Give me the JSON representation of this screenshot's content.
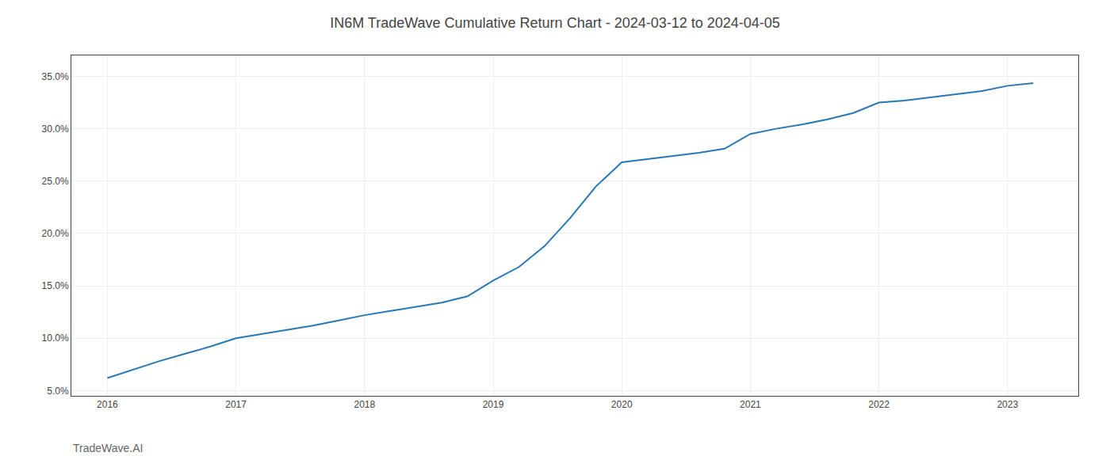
{
  "chart_data": {
    "type": "line",
    "title": "IN6M TradeWave Cumulative Return Chart - 2024-03-12 to 2024-04-05",
    "annotations": [
      "TradeWave.AI"
    ],
    "x": [
      2016.0,
      2016.2,
      2016.4,
      2016.6,
      2016.8,
      2017.0,
      2017.2,
      2017.4,
      2017.6,
      2017.8,
      2018.0,
      2018.2,
      2018.4,
      2018.6,
      2018.8,
      2019.0,
      2019.2,
      2019.4,
      2019.6,
      2019.8,
      2020.0,
      2020.2,
      2020.4,
      2020.6,
      2020.8,
      2021.0,
      2021.2,
      2021.4,
      2021.6,
      2021.8,
      2022.0,
      2022.2,
      2022.4,
      2022.6,
      2022.8,
      2023.0,
      2023.2
    ],
    "values": [
      6.2,
      7.0,
      7.8,
      8.5,
      9.2,
      10.0,
      10.4,
      10.8,
      11.2,
      11.7,
      12.2,
      12.6,
      13.0,
      13.4,
      14.0,
      15.5,
      16.8,
      18.8,
      21.5,
      24.5,
      26.8,
      27.1,
      27.4,
      27.7,
      28.1,
      29.5,
      30.0,
      30.4,
      30.9,
      31.5,
      32.5,
      32.7,
      33.0,
      33.3,
      33.6,
      34.1,
      34.35
    ],
    "color": "#2878b5",
    "xlim": [
      2015.72,
      2023.55
    ],
    "xticks": [
      2016,
      2017,
      2018,
      2019,
      2020,
      2021,
      2022,
      2023
    ],
    "ylim": [
      4.5,
      37.0
    ],
    "yticks": [
      {
        "value": 5.0,
        "label": "5.0%"
      },
      {
        "value": 10.0,
        "label": "10.0%"
      },
      {
        "value": 15.0,
        "label": "15.0%"
      },
      {
        "value": 20.0,
        "label": "20.0%"
      },
      {
        "value": 25.0,
        "label": "25.0%"
      },
      {
        "value": 30.0,
        "label": "30.0%"
      },
      {
        "value": 35.0,
        "label": "35.0%"
      }
    ],
    "grid": true
  }
}
